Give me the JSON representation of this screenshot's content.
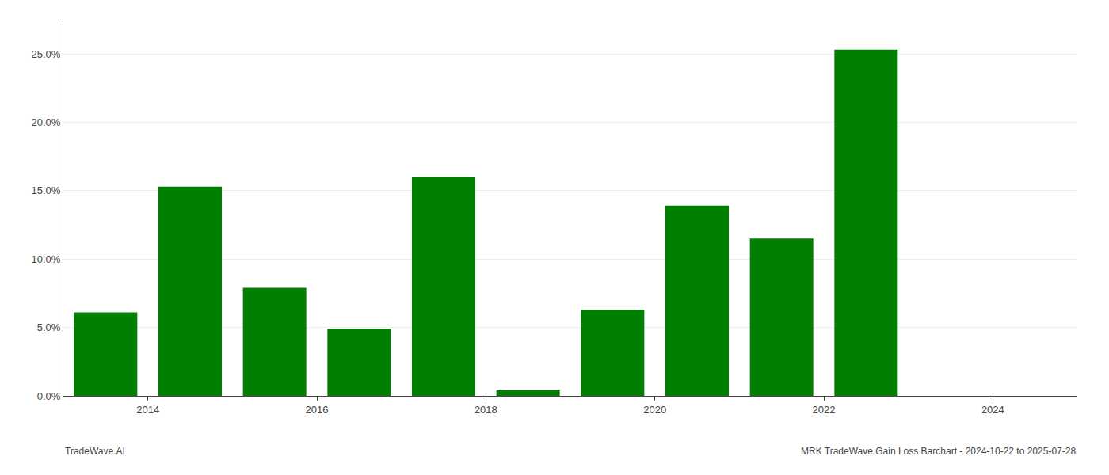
{
  "chart_data": {
    "type": "bar",
    "x": [
      2013.5,
      2014.5,
      2015.5,
      2016.5,
      2017.5,
      2018.5,
      2019.5,
      2020.5,
      2021.5,
      2022.5,
      2023.5
    ],
    "values": [
      0.061,
      0.153,
      0.079,
      0.049,
      0.16,
      0.004,
      0.063,
      0.139,
      0.115,
      0.253,
      0.0
    ],
    "color": "#008000",
    "xlim": [
      2013.0,
      2025.0
    ],
    "xticks": [
      2014,
      2016,
      2018,
      2020,
      2022,
      2024
    ],
    "ylim": [
      0,
      0.272
    ],
    "yticks": [
      {
        "value": 0.0,
        "label": "0.0%"
      },
      {
        "value": 0.05,
        "label": "5.0%"
      },
      {
        "value": 0.1,
        "label": "10.0%"
      },
      {
        "value": 0.15,
        "label": "15.0%"
      },
      {
        "value": 0.2,
        "label": "20.0%"
      },
      {
        "value": 0.25,
        "label": "25.0%"
      }
    ],
    "grid": true,
    "annotations": [
      "TradeWave.AI",
      "MRK TradeWave Gain Loss Barchart - 2024-10-22 to 2025-07-28"
    ]
  }
}
